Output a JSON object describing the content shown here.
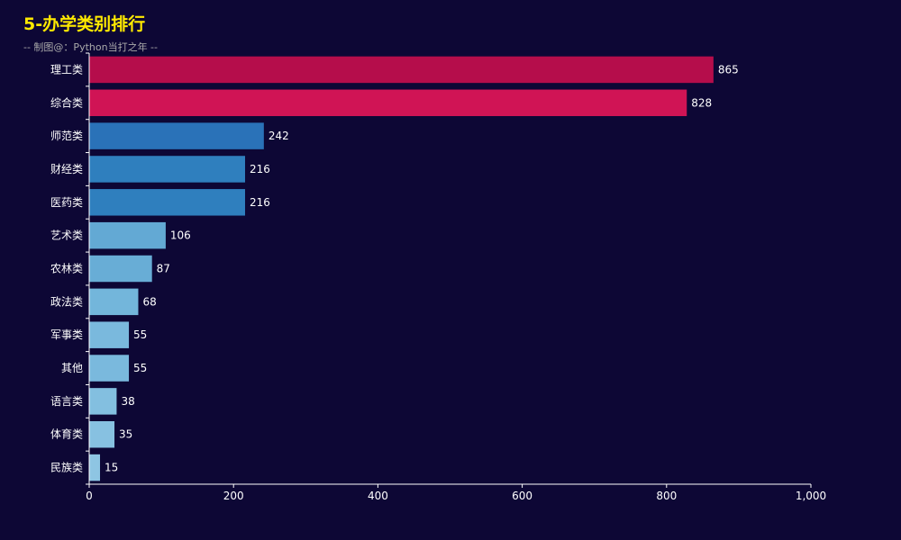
{
  "chart_data": {
    "type": "bar",
    "orientation": "horizontal",
    "title": "5-办学类别排行",
    "subtitle": "-- 制图@：Python当打之年 --",
    "categories": [
      "理工类",
      "综合类",
      "师范类",
      "财经类",
      "医药类",
      "艺术类",
      "农林类",
      "政法类",
      "军事类",
      "其他",
      "语言类",
      "体育类",
      "民族类"
    ],
    "values": [
      865,
      828,
      242,
      216,
      216,
      106,
      87,
      68,
      55,
      55,
      38,
      35,
      15
    ],
    "colors": [
      "#b50d4b",
      "#d01455",
      "#2a72b8",
      "#2f7fbe",
      "#2f7fbe",
      "#63a9d4",
      "#68add6",
      "#73b6db",
      "#7ab9dd",
      "#7ab9dd",
      "#83bfe0",
      "#87c1e1",
      "#8ec5e3"
    ],
    "x_ticks": [
      "0",
      "200",
      "400",
      "600",
      "800",
      "1,000"
    ],
    "xlim": [
      0,
      1000
    ],
    "grid": false,
    "legend": "none"
  },
  "theme": {
    "background": "#0d0735",
    "title_color": "#ffea00",
    "text_color": "#ffffff",
    "axis_color": "#ffffff"
  }
}
